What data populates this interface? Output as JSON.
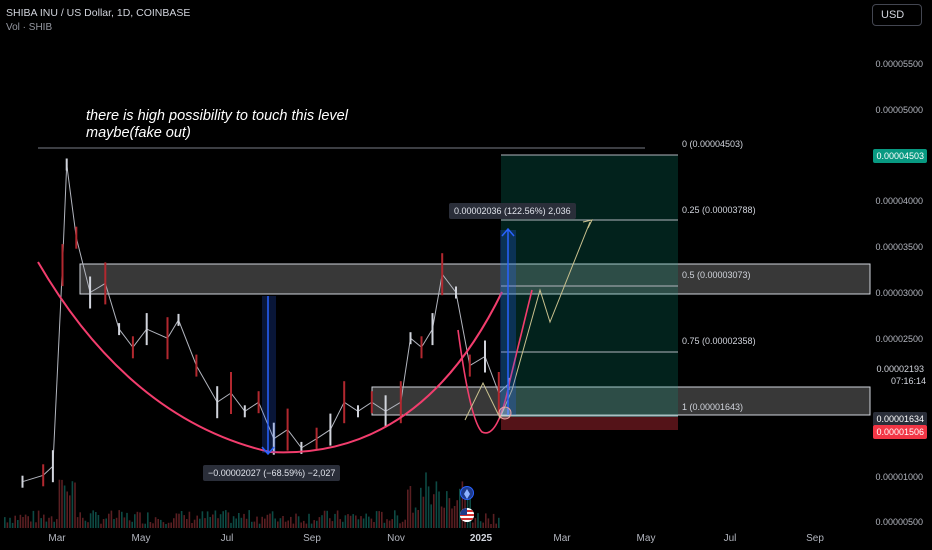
{
  "header": {
    "symbol_line": "SHIBA INU / US Dollar, 1D, COINBASE",
    "volume_label": "Vol · SHIB",
    "currency_button": "USD"
  },
  "annotation": {
    "line1": "there is high possibility to touch this level",
    "line2": "maybe(fake out)"
  },
  "y_axis": {
    "ticks": [
      "0.00005500",
      "0.00005000",
      "0.00004000",
      "0.00003500",
      "0.00003000",
      "0.00002500",
      "0.00001000",
      "0.00000500"
    ],
    "price_tags": [
      {
        "text": "0.00004503",
        "color": "#089981"
      },
      {
        "text": "0.00002193",
        "color": "transparent"
      },
      {
        "text": "0.00001634",
        "color": "#2a2e39"
      },
      {
        "text": "0.00001506",
        "color": "#f23645"
      }
    ],
    "countdown": "07:16:14"
  },
  "x_axis": {
    "ticks": [
      "Mar",
      "May",
      "Jul",
      "Sep",
      "Nov",
      "2025",
      "Mar",
      "May",
      "Jul",
      "Sep"
    ]
  },
  "fib_levels": [
    {
      "label": "0 (0.00004503)",
      "price": 4.503e-05
    },
    {
      "label": "0.25 (0.00003788)",
      "price": 3.788e-05
    },
    {
      "label": "0.5 (0.00003073)",
      "price": 3.073e-05
    },
    {
      "label": "0.75 (0.00002358)",
      "price": 2.358e-05
    },
    {
      "label": "1 (0.00001643)",
      "price": 1.643e-05
    }
  ],
  "measurements": {
    "up": "0.00002036 (122.56%) 2,036",
    "down": "−0.00002027 (−68.59%) −2,027"
  },
  "chart_data": {
    "type": "line",
    "series": [
      {
        "x": [
          "2024-02-05",
          "2024-02-20",
          "2024-02-27",
          "2024-03-05",
          "2024-03-08",
          "2024-03-15",
          "2024-03-25",
          "2024-04-05",
          "2024-04-15",
          "2024-04-25",
          "2024-05-05",
          "2024-05-20",
          "2024-05-28",
          "2024-06-10",
          "2024-06-25",
          "2024-07-05",
          "2024-07-15",
          "2024-07-25",
          "2024-08-05",
          "2024-08-15",
          "2024-08-25",
          "2024-09-05",
          "2024-09-15",
          "2024-09-25",
          "2024-10-05",
          "2024-10-15",
          "2024-10-25",
          "2024-11-05",
          "2024-11-12",
          "2024-11-20",
          "2024-11-28",
          "2024-12-05",
          "2024-12-15",
          "2024-12-25",
          "2025-01-05",
          "2025-01-15",
          "2025-01-22"
        ],
        "values": [
          9.3e-06,
          1e-05,
          1.1e-05,
          3.3e-05,
          4.4e-05,
          3.6e-05,
          3e-05,
          3.1e-05,
          2.6e-05,
          2.4e-05,
          2.6e-05,
          2.5e-05,
          2.7e-05,
          2.2e-05,
          1.8e-05,
          1.9e-05,
          1.7e-05,
          1.8e-05,
          1.4e-05,
          1.5e-05,
          1.3e-05,
          1.4e-05,
          1.5e-05,
          1.8e-05,
          1.7e-05,
          1.8e-05,
          1.7e-05,
          1.8e-05,
          2.5e-05,
          2.4e-05,
          2.6e-05,
          3.2e-05,
          3e-05,
          2.2e-05,
          2.3e-05,
          1.9e-05,
          2e-05
        ]
      }
    ],
    "ylim": [
      5e-06,
      6e-05
    ],
    "grid": false,
    "legend": "none"
  }
}
